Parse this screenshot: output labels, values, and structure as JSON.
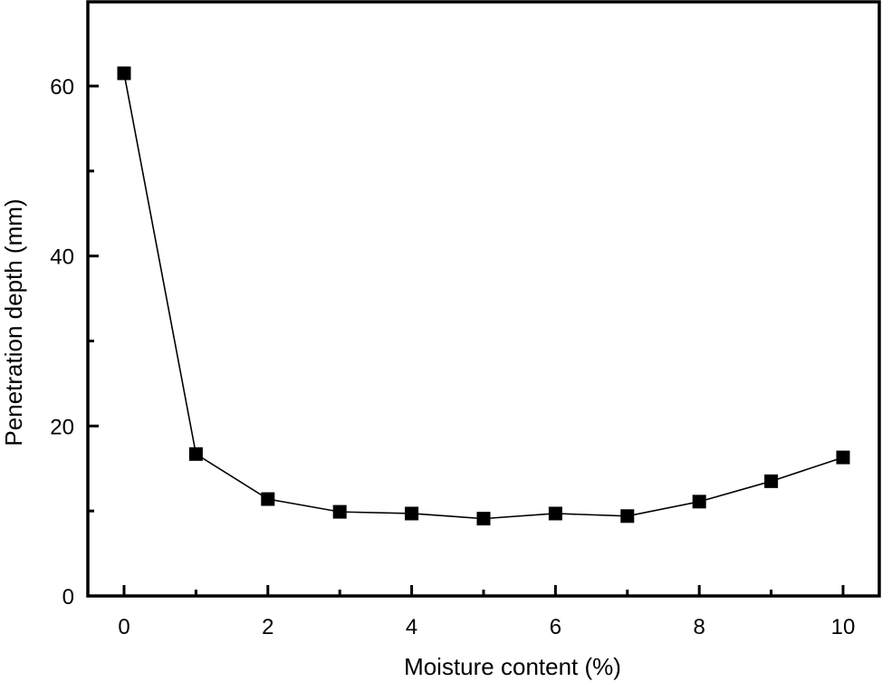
{
  "chart_data": {
    "type": "line",
    "title": "",
    "xlabel": "Moisture content (%)",
    "ylabel": "Penetration depth (mm)",
    "x": [
      0,
      1,
      2,
      3,
      4,
      5,
      6,
      7,
      8,
      9,
      10
    ],
    "series": [
      {
        "name": "Penetration depth",
        "values": [
          61.5,
          16.7,
          11.4,
          9.9,
          9.7,
          9.1,
          9.7,
          9.4,
          11.1,
          13.5,
          16.3
        ],
        "marker": "square",
        "color": "#000000"
      }
    ],
    "xlim": [
      -0.5,
      10.5
    ],
    "ylim": [
      0,
      70
    ],
    "xticks": [
      0,
      2,
      4,
      6,
      8,
      10
    ],
    "xticks_minor": [
      1,
      3,
      5,
      7,
      9
    ],
    "yticks": [
      0,
      20,
      40,
      60
    ],
    "yticks_minor": [
      10,
      30,
      50
    ],
    "xtick_labels": [
      "0",
      "2",
      "4",
      "6",
      "8",
      "10"
    ],
    "ytick_labels": [
      "0",
      "20",
      "40",
      "60"
    ],
    "grid": false,
    "legend": null
  }
}
